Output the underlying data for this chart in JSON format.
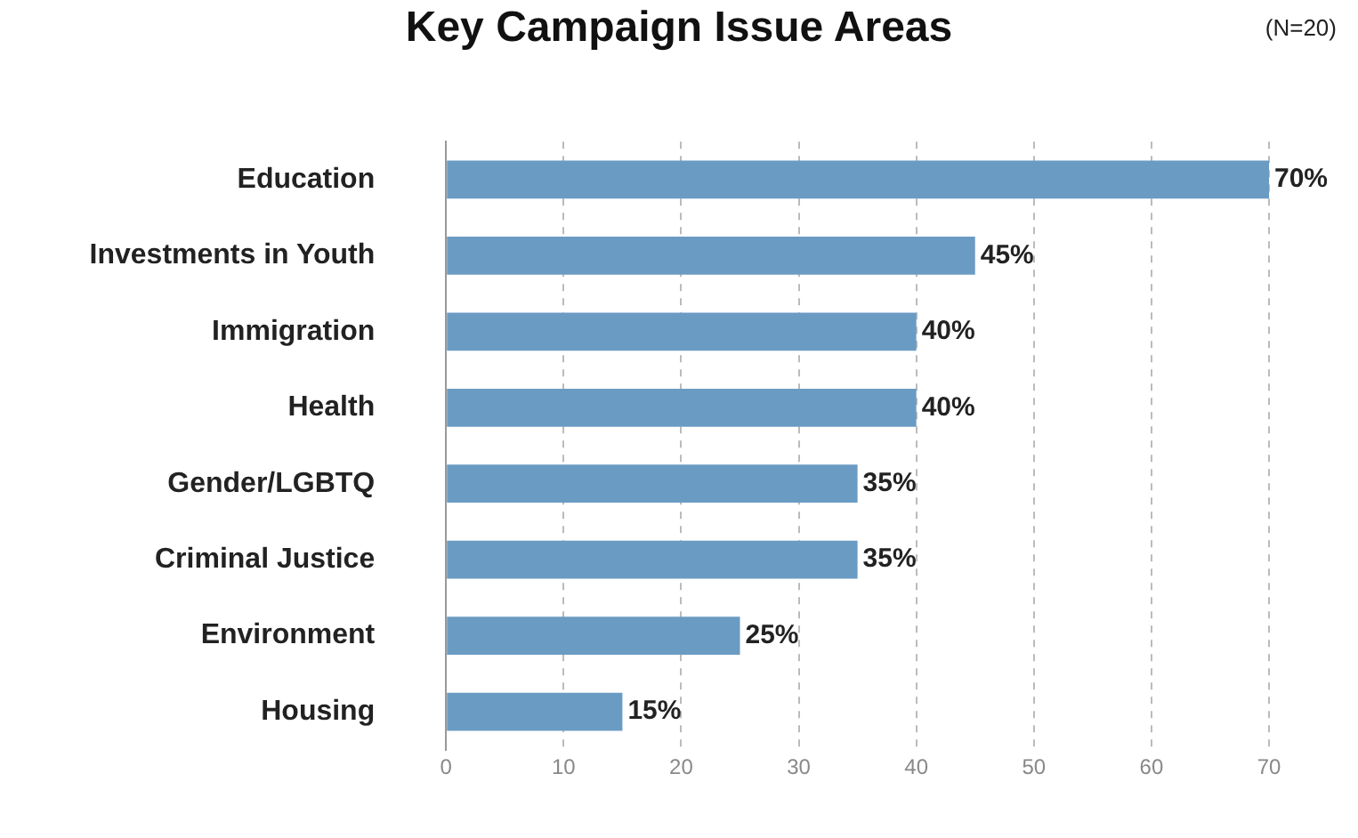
{
  "chart_data": {
    "type": "bar",
    "orientation": "horizontal",
    "title": "Key Campaign Issue Areas",
    "annotations": [
      "(N=20)"
    ],
    "categories": [
      "Education",
      "Investments in Youth",
      "Immigration",
      "Health",
      "Gender/LGBTQ",
      "Criminal Justice",
      "Environment",
      "Housing"
    ],
    "values": [
      70,
      45,
      40,
      40,
      35,
      35,
      25,
      15
    ],
    "value_labels": [
      "70%",
      "45%",
      "40%",
      "40%",
      "35%",
      "35%",
      "25%",
      "15%"
    ],
    "color": "#6a9bc3",
    "xlim": [
      0,
      70
    ],
    "xticks": [
      0,
      10,
      20,
      30,
      40,
      50,
      60,
      70
    ],
    "grid": "x",
    "legend": false
  }
}
